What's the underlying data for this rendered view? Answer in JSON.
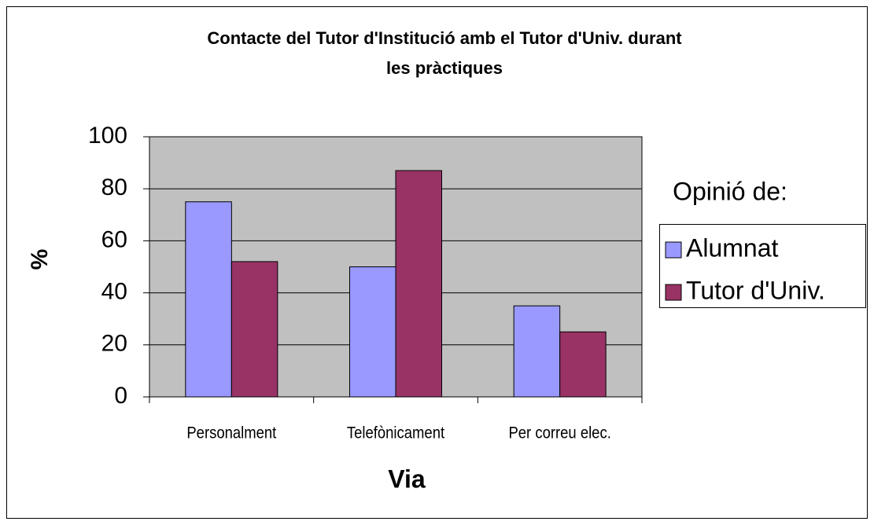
{
  "chart_data": {
    "type": "bar",
    "title": [
      "Contacte del Tutor d'Institució amb el Tutor d'Univ. durant",
      "les pràctiques"
    ],
    "x_label": "Via",
    "y_label": "%",
    "categories": [
      "Personalment",
      "Telefònicament",
      "Per correu elec."
    ],
    "legend_title": "Opinió de:",
    "series": [
      {
        "name": "Alumnat",
        "color": "#9999ff",
        "values": [
          75,
          50,
          35
        ]
      },
      {
        "name": "Tutor d'Univ.",
        "color": "#993366",
        "values": [
          52,
          87,
          25
        ]
      }
    ],
    "ylim": [
      0,
      100
    ],
    "yticks": [
      0,
      20,
      40,
      60,
      80,
      100
    ],
    "grid": true,
    "legend": "right"
  }
}
